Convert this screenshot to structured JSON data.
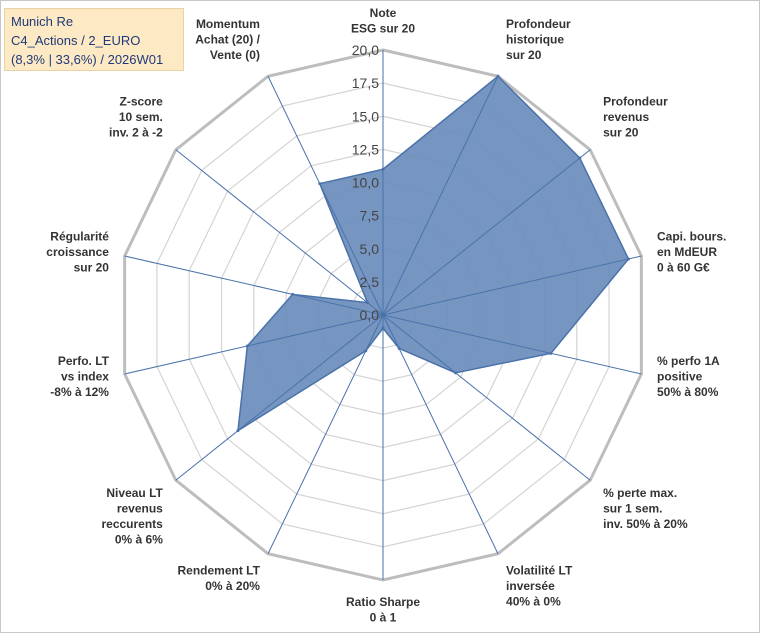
{
  "legend": {
    "line1": "Munich Re",
    "line2": "C4_Actions / 2_EURO",
    "line3": "(8,3% | 33,6%) / 2026W01"
  },
  "chart_data": {
    "type": "radar",
    "title": "Munich Re",
    "range": [
      0,
      20
    ],
    "ticks": [
      "0,0",
      "2,5",
      "5,0",
      "7,5",
      "10,0",
      "12,5",
      "15,0",
      "17,5",
      "20,0"
    ],
    "axes": [
      "Note\nESG sur 20",
      "Profondeur\nhistorique\nsur 20",
      "Profondeur\nrevenus\nsur 20",
      "Capi. bours.\nen MdEUR\n0 à 60 G€",
      "% perfo 1A\npositive\n50% à 80%",
      "% perte max.\nsur 1 sem.\ninv. 50% à 20%",
      "Volatilité LT\ninversée\n40% à 0%",
      "Ratio Sharpe\n0 à 1",
      "Rendement LT\n0% à 20%",
      "Niveau LT\nrevenus\nreccurents\n0% à 6%",
      "Perfo. LT\nvs index\n-8% à 12%",
      "Régularité\ncroissance\nsur 20",
      "Z-score\n10 sem.\ninv. 2 à -2",
      "Momentum\nAchat (20) /\nVente (0)"
    ],
    "values": [
      11.0,
      20.0,
      19.0,
      19.0,
      13.0,
      7.0,
      2.8,
      1.0,
      3.0,
      14.0,
      10.5,
      7.0,
      1.5,
      11.0
    ],
    "series_color": "#6a8dbc",
    "series_stroke": "#4a72aa",
    "grid_color": "#d4d4d4",
    "spoke_color": "#4a72aa"
  }
}
